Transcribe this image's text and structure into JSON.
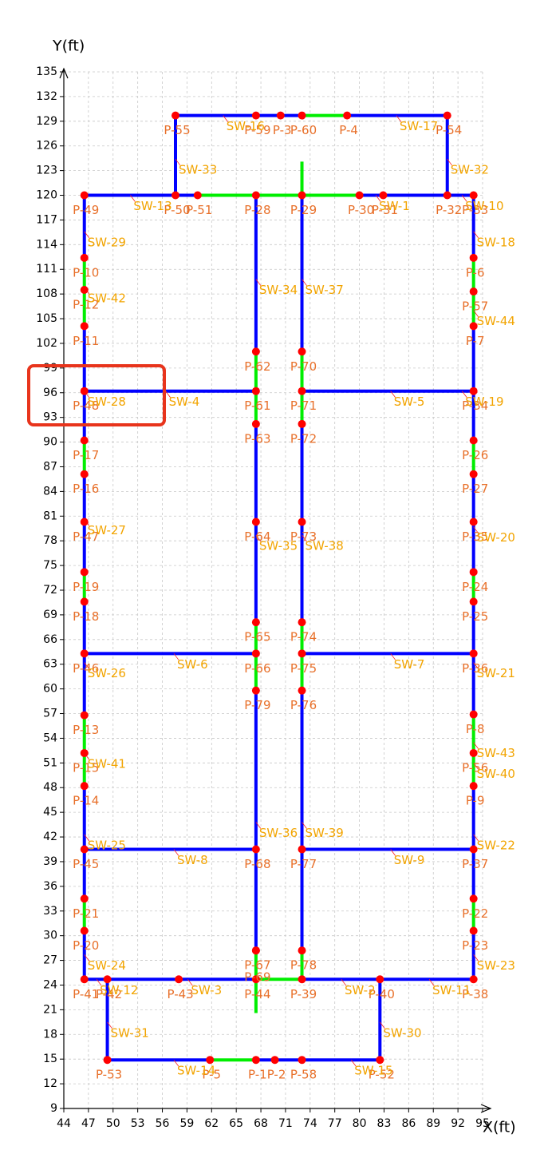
{
  "chart_data": {
    "type": "network",
    "x_label": "X(ft)",
    "y_label": "Y(ft)",
    "xlim": [
      44,
      95
    ],
    "ylim": [
      9,
      135
    ],
    "xticks": [
      44,
      47,
      50,
      53,
      56,
      59,
      62,
      65,
      68,
      71,
      74,
      77,
      80,
      83,
      86,
      89,
      92,
      95
    ],
    "yticks": [
      9,
      12,
      15,
      18,
      21,
      24,
      27,
      30,
      33,
      36,
      39,
      42,
      45,
      48,
      51,
      54,
      57,
      60,
      63,
      66,
      69,
      72,
      75,
      78,
      81,
      84,
      87,
      90,
      93,
      96,
      99,
      102,
      105,
      108,
      111,
      114,
      117,
      120,
      123,
      126,
      129,
      132,
      135
    ],
    "grid": true,
    "node_color": "#ff0000",
    "node_label_color": "#e8702a",
    "sw_label_color": "#f2a400",
    "pipes": [
      {
        "x": [
          57.6,
          57.6
        ],
        "y": [
          120,
          129.7
        ],
        "color": "#0000ff"
      },
      {
        "x": [
          57.6,
          73.0
        ],
        "y": [
          129.7,
          129.7
        ],
        "color": "#0000ff"
      },
      {
        "x": [
          73.0,
          78.5
        ],
        "y": [
          129.7,
          129.7
        ],
        "color": "#00ee00"
      },
      {
        "x": [
          78.5,
          90.7
        ],
        "y": [
          129.7,
          129.7
        ],
        "color": "#0000ff"
      },
      {
        "x": [
          90.7,
          90.7
        ],
        "y": [
          129.7,
          120
        ],
        "color": "#0000ff"
      },
      {
        "x": [
          46.5,
          60.3
        ],
        "y": [
          120,
          120
        ],
        "color": "#0000ff"
      },
      {
        "x": [
          60.3,
          80.0
        ],
        "y": [
          120,
          120
        ],
        "color": "#00ee00"
      },
      {
        "x": [
          80.0,
          93.9
        ],
        "y": [
          120,
          120
        ],
        "color": "#0000ff"
      },
      {
        "x": [
          67.4,
          67.4
        ],
        "y": [
          120,
          101.0
        ],
        "color": "#0000ff"
      },
      {
        "x": [
          67.4,
          67.4
        ],
        "y": [
          101.0,
          92.2
        ],
        "color": "#00ee00"
      },
      {
        "x": [
          67.4,
          67.4
        ],
        "y": [
          92.2,
          68.1
        ],
        "color": "#0000ff"
      },
      {
        "x": [
          67.4,
          67.4
        ],
        "y": [
          68.1,
          59.8
        ],
        "color": "#00ee00"
      },
      {
        "x": [
          67.4,
          67.4
        ],
        "y": [
          59.8,
          28.2
        ],
        "color": "#0000ff"
      },
      {
        "x": [
          67.4,
          67.4
        ],
        "y": [
          28.2,
          20.8
        ],
        "color": "#00ee00"
      },
      {
        "x": [
          73.0,
          73.0
        ],
        "y": [
          123.9,
          120
        ],
        "color": "#00ee00"
      },
      {
        "x": [
          73.0,
          73.0
        ],
        "y": [
          120,
          101.0
        ],
        "color": "#0000ff"
      },
      {
        "x": [
          73.0,
          73.0
        ],
        "y": [
          101.0,
          92.2
        ],
        "color": "#00ee00"
      },
      {
        "x": [
          73.0,
          73.0
        ],
        "y": [
          92.2,
          68.1
        ],
        "color": "#0000ff"
      },
      {
        "x": [
          73.0,
          73.0
        ],
        "y": [
          68.1,
          59.8
        ],
        "color": "#00ee00"
      },
      {
        "x": [
          73.0,
          73.0
        ],
        "y": [
          59.8,
          28.2
        ],
        "color": "#0000ff"
      },
      {
        "x": [
          73.0,
          73.0
        ],
        "y": [
          28.2,
          24.7
        ],
        "color": "#00ee00"
      },
      {
        "x": [
          46.5,
          67.4
        ],
        "y": [
          96.2,
          96.2
        ],
        "color": "#0000ff"
      },
      {
        "x": [
          73.0,
          93.9
        ],
        "y": [
          96.2,
          96.2
        ],
        "color": "#0000ff"
      },
      {
        "x": [
          46.5,
          67.4
        ],
        "y": [
          64.3,
          64.3
        ],
        "color": "#0000ff"
      },
      {
        "x": [
          73.0,
          93.9
        ],
        "y": [
          64.3,
          64.3
        ],
        "color": "#0000ff"
      },
      {
        "x": [
          46.5,
          67.4
        ],
        "y": [
          40.5,
          40.5
        ],
        "color": "#0000ff"
      },
      {
        "x": [
          73.0,
          93.9
        ],
        "y": [
          40.5,
          40.5
        ],
        "color": "#0000ff"
      },
      {
        "x": [
          46.5,
          67.4
        ],
        "y": [
          24.7,
          24.7
        ],
        "color": "#0000ff"
      },
      {
        "x": [
          67.4,
          73.0
        ],
        "y": [
          24.7,
          24.7
        ],
        "color": "#00ee00"
      },
      {
        "x": [
          73.0,
          93.9
        ],
        "y": [
          24.7,
          24.7
        ],
        "color": "#0000ff"
      },
      {
        "x": [
          46.5,
          46.5
        ],
        "y": [
          120,
          112.4
        ],
        "color": "#0000ff"
      },
      {
        "x": [
          46.5,
          46.5
        ],
        "y": [
          112.4,
          104.1
        ],
        "color": "#00ee00"
      },
      {
        "x": [
          46.5,
          46.5
        ],
        "y": [
          104.1,
          90.2
        ],
        "color": "#0000ff"
      },
      {
        "x": [
          46.5,
          46.5
        ],
        "y": [
          90.2,
          86.1
        ],
        "color": "#00ee00"
      },
      {
        "x": [
          46.5,
          46.5
        ],
        "y": [
          86.1,
          74.2
        ],
        "color": "#0000ff"
      },
      {
        "x": [
          46.5,
          46.5
        ],
        "y": [
          74.2,
          70.6
        ],
        "color": "#00ee00"
      },
      {
        "x": [
          46.5,
          46.5
        ],
        "y": [
          70.6,
          56.8
        ],
        "color": "#0000ff"
      },
      {
        "x": [
          46.5,
          46.5
        ],
        "y": [
          56.8,
          48.2
        ],
        "color": "#00ee00"
      },
      {
        "x": [
          46.5,
          46.5
        ],
        "y": [
          48.2,
          34.5
        ],
        "color": "#0000ff"
      },
      {
        "x": [
          46.5,
          46.5
        ],
        "y": [
          34.5,
          30.6
        ],
        "color": "#00ee00"
      },
      {
        "x": [
          46.5,
          46.5
        ],
        "y": [
          30.6,
          24.7
        ],
        "color": "#0000ff"
      },
      {
        "x": [
          93.9,
          93.9
        ],
        "y": [
          120,
          112.4
        ],
        "color": "#0000ff"
      },
      {
        "x": [
          93.9,
          93.9
        ],
        "y": [
          112.4,
          104.1
        ],
        "color": "#00ee00"
      },
      {
        "x": [
          93.9,
          93.9
        ],
        "y": [
          104.1,
          90.2
        ],
        "color": "#0000ff"
      },
      {
        "x": [
          93.9,
          93.9
        ],
        "y": [
          90.2,
          86.1
        ],
        "color": "#00ee00"
      },
      {
        "x": [
          93.9,
          93.9
        ],
        "y": [
          86.1,
          74.2
        ],
        "color": "#0000ff"
      },
      {
        "x": [
          93.9,
          93.9
        ],
        "y": [
          74.2,
          70.6
        ],
        "color": "#00ee00"
      },
      {
        "x": [
          93.9,
          93.9
        ],
        "y": [
          70.6,
          56.9
        ],
        "color": "#0000ff"
      },
      {
        "x": [
          93.9,
          93.9
        ],
        "y": [
          56.9,
          48.2
        ],
        "color": "#00ee00"
      },
      {
        "x": [
          93.9,
          93.9
        ],
        "y": [
          48.2,
          34.5
        ],
        "color": "#0000ff"
      },
      {
        "x": [
          93.9,
          93.9
        ],
        "y": [
          34.5,
          30.6
        ],
        "color": "#00ee00"
      },
      {
        "x": [
          93.9,
          93.9
        ],
        "y": [
          30.6,
          24.7
        ],
        "color": "#0000ff"
      },
      {
        "x": [
          49.3,
          49.3
        ],
        "y": [
          24.7,
          14.9
        ],
        "color": "#0000ff"
      },
      {
        "x": [
          49.3,
          61.8
        ],
        "y": [
          14.9,
          14.9
        ],
        "color": "#0000ff"
      },
      {
        "x": [
          61.8,
          67.4
        ],
        "y": [
          14.9,
          14.9
        ],
        "color": "#00ee00"
      },
      {
        "x": [
          67.4,
          82.5
        ],
        "y": [
          14.9,
          14.9
        ],
        "color": "#0000ff"
      },
      {
        "x": [
          82.5,
          82.5
        ],
        "y": [
          24.7,
          14.9
        ],
        "color": "#0000ff"
      }
    ],
    "nodes": [
      {
        "label": "P-55",
        "x": 57.6,
        "y": 129.7
      },
      {
        "label": "P-59",
        "x": 67.4,
        "y": 129.7
      },
      {
        "label": "P-3",
        "x": 70.4,
        "y": 129.7
      },
      {
        "label": "P-60",
        "x": 73.0,
        "y": 129.7
      },
      {
        "label": "P-4",
        "x": 78.5,
        "y": 129.7
      },
      {
        "label": "P-54",
        "x": 90.7,
        "y": 129.7
      },
      {
        "label": "P-49",
        "x": 46.5,
        "y": 120
      },
      {
        "label": "P-50",
        "x": 57.6,
        "y": 120
      },
      {
        "label": "P-51",
        "x": 60.3,
        "y": 120
      },
      {
        "label": "P-28",
        "x": 67.4,
        "y": 120
      },
      {
        "label": "P-29",
        "x": 73.0,
        "y": 120
      },
      {
        "label": "P-30",
        "x": 80.0,
        "y": 120
      },
      {
        "label": "P-31",
        "x": 82.9,
        "y": 120
      },
      {
        "label": "P-32",
        "x": 90.7,
        "y": 120
      },
      {
        "label": "P-33",
        "x": 93.9,
        "y": 120
      },
      {
        "label": "P-10",
        "x": 46.5,
        "y": 112.4
      },
      {
        "label": "P-12",
        "x": 46.5,
        "y": 108.5
      },
      {
        "label": "P-11",
        "x": 46.5,
        "y": 104.1
      },
      {
        "label": "P-48",
        "x": 46.5,
        "y": 96.2
      },
      {
        "label": "P-17",
        "x": 46.5,
        "y": 90.2
      },
      {
        "label": "P-16",
        "x": 46.5,
        "y": 86.1
      },
      {
        "label": "P-47",
        "x": 46.5,
        "y": 80.3
      },
      {
        "label": "P-19",
        "x": 46.5,
        "y": 74.2
      },
      {
        "label": "P-18",
        "x": 46.5,
        "y": 70.6
      },
      {
        "label": "P-46",
        "x": 46.5,
        "y": 64.3
      },
      {
        "label": "P-13",
        "x": 46.5,
        "y": 56.8
      },
      {
        "label": "P-15",
        "x": 46.5,
        "y": 52.2
      },
      {
        "label": "P-14",
        "x": 46.5,
        "y": 48.2
      },
      {
        "label": "P-45",
        "x": 46.5,
        "y": 40.5
      },
      {
        "label": "P-21",
        "x": 46.5,
        "y": 34.5
      },
      {
        "label": "P-20",
        "x": 46.5,
        "y": 30.6
      },
      {
        "label": "P-41",
        "x": 46.5,
        "y": 24.7
      },
      {
        "label": "P-6",
        "x": 93.9,
        "y": 112.4
      },
      {
        "label": "P-57",
        "x": 93.9,
        "y": 108.3
      },
      {
        "label": "P-7",
        "x": 93.9,
        "y": 104.1
      },
      {
        "label": "P-34",
        "x": 93.9,
        "y": 96.2
      },
      {
        "label": "P-26",
        "x": 93.9,
        "y": 90.2
      },
      {
        "label": "P-27",
        "x": 93.9,
        "y": 86.1
      },
      {
        "label": "P-35",
        "x": 93.9,
        "y": 80.3
      },
      {
        "label": "P-24",
        "x": 93.9,
        "y": 74.2
      },
      {
        "label": "P-25",
        "x": 93.9,
        "y": 70.6
      },
      {
        "label": "P-36",
        "x": 93.9,
        "y": 64.3
      },
      {
        "label": "P-8",
        "x": 93.9,
        "y": 56.9
      },
      {
        "label": "P-56",
        "x": 93.9,
        "y": 52.2
      },
      {
        "label": "P-9",
        "x": 93.9,
        "y": 48.2
      },
      {
        "label": "P-37",
        "x": 93.9,
        "y": 40.5
      },
      {
        "label": "P-22",
        "x": 93.9,
        "y": 34.5
      },
      {
        "label": "P-23",
        "x": 93.9,
        "y": 30.6
      },
      {
        "label": "P-38",
        "x": 93.9,
        "y": 24.7
      },
      {
        "label": "P-62",
        "x": 67.4,
        "y": 101.0
      },
      {
        "label": "P-61",
        "x": 67.4,
        "y": 96.2
      },
      {
        "label": "P-63",
        "x": 67.4,
        "y": 92.2
      },
      {
        "label": "P-64",
        "x": 67.4,
        "y": 80.3
      },
      {
        "label": "P-65",
        "x": 67.4,
        "y": 68.1
      },
      {
        "label": "P-66",
        "x": 67.4,
        "y": 64.3
      },
      {
        "label": "P-79",
        "x": 67.4,
        "y": 59.8
      },
      {
        "label": "P-68",
        "x": 67.4,
        "y": 40.5
      },
      {
        "label": "P-67",
        "x": 67.4,
        "y": 28.2
      },
      {
        "label": "P-69",
        "x": 67.4,
        "y": 28.2
      },
      {
        "label": "P-44",
        "x": 67.4,
        "y": 24.7
      },
      {
        "label": "P-1",
        "x": 67.4,
        "y": 14.9
      },
      {
        "label": "P-70",
        "x": 73.0,
        "y": 101.0
      },
      {
        "label": "P-71",
        "x": 73.0,
        "y": 96.2
      },
      {
        "label": "P-72",
        "x": 73.0,
        "y": 92.2
      },
      {
        "label": "P-73",
        "x": 73.0,
        "y": 80.3
      },
      {
        "label": "P-74",
        "x": 73.0,
        "y": 68.1
      },
      {
        "label": "P-75",
        "x": 73.0,
        "y": 64.3
      },
      {
        "label": "P-76",
        "x": 73.0,
        "y": 59.8
      },
      {
        "label": "P-77",
        "x": 73.0,
        "y": 40.5
      },
      {
        "label": "P-78",
        "x": 73.0,
        "y": 28.2
      },
      {
        "label": "P-39",
        "x": 73.0,
        "y": 24.7
      },
      {
        "label": "P-58",
        "x": 73.0,
        "y": 14.9
      },
      {
        "label": "P-42",
        "x": 49.3,
        "y": 24.7
      },
      {
        "label": "P-43",
        "x": 58.0,
        "y": 24.7
      },
      {
        "label": "P-40",
        "x": 82.5,
        "y": 24.7
      },
      {
        "label": "P-53",
        "x": 49.3,
        "y": 14.9
      },
      {
        "label": "P-5",
        "x": 61.8,
        "y": 14.9
      },
      {
        "label": "P-2",
        "x": 69.7,
        "y": 14.9
      },
      {
        "label": "P-52",
        "x": 82.5,
        "y": 14.9
      }
    ],
    "sw_labels": [
      {
        "text": "SW-16",
        "x": 63.4,
        "y": 129.7
      },
      {
        "text": "SW-17",
        "x": 84.5,
        "y": 129.7
      },
      {
        "text": "SW-33",
        "x": 57.6,
        "y": 124.4
      },
      {
        "text": "SW-32",
        "x": 90.7,
        "y": 124.4
      },
      {
        "text": "SW-13",
        "x": 52.1,
        "y": 120
      },
      {
        "text": "SW-1",
        "x": 82.0,
        "y": 120
      },
      {
        "text": "SW-10",
        "x": 92.5,
        "y": 120
      },
      {
        "text": "SW-29",
        "x": 46.5,
        "y": 115.6
      },
      {
        "text": "SW-18",
        "x": 93.9,
        "y": 115.6
      },
      {
        "text": "SW-34",
        "x": 67.4,
        "y": 109.8
      },
      {
        "text": "SW-37",
        "x": 73.0,
        "y": 109.8
      },
      {
        "text": "SW-42",
        "x": 46.5,
        "y": 108.8
      },
      {
        "text": "SW-44",
        "x": 93.9,
        "y": 106.0
      },
      {
        "text": "SW-28",
        "x": 46.5,
        "y": 96.2
      },
      {
        "text": "SW-4",
        "x": 56.4,
        "y": 96.2
      },
      {
        "text": "SW-5",
        "x": 83.8,
        "y": 96.2
      },
      {
        "text": "SW-19",
        "x": 92.5,
        "y": 96.2
      },
      {
        "text": "SW-27",
        "x": 46.5,
        "y": 80.6
      },
      {
        "text": "SW-35",
        "x": 67.4,
        "y": 78.7
      },
      {
        "text": "SW-38",
        "x": 73.0,
        "y": 78.7
      },
      {
        "text": "SW-20",
        "x": 93.9,
        "y": 79.7
      },
      {
        "text": "SW-6",
        "x": 57.4,
        "y": 64.3
      },
      {
        "text": "SW-7",
        "x": 83.8,
        "y": 64.3
      },
      {
        "text": "SW-26",
        "x": 46.5,
        "y": 63.2
      },
      {
        "text": "SW-21",
        "x": 93.9,
        "y": 63.2
      },
      {
        "text": "SW-41",
        "x": 46.5,
        "y": 52.2
      },
      {
        "text": "SW-43",
        "x": 93.9,
        "y": 53.5
      },
      {
        "text": "SW-40",
        "x": 93.9,
        "y": 51.0
      },
      {
        "text": "SW-25",
        "x": 46.5,
        "y": 42.3
      },
      {
        "text": "SW-22",
        "x": 93.9,
        "y": 42.3
      },
      {
        "text": "SW-36",
        "x": 67.4,
        "y": 43.8
      },
      {
        "text": "SW-39",
        "x": 73.0,
        "y": 43.8
      },
      {
        "text": "SW-8",
        "x": 57.4,
        "y": 40.5
      },
      {
        "text": "SW-9",
        "x": 83.8,
        "y": 40.5
      },
      {
        "text": "SW-24",
        "x": 46.5,
        "y": 27.7
      },
      {
        "text": "SW-23",
        "x": 93.9,
        "y": 27.7
      },
      {
        "text": "SW-3",
        "x": 59.1,
        "y": 24.7
      },
      {
        "text": "SW-2",
        "x": 77.8,
        "y": 24.7
      },
      {
        "text": "SW-11",
        "x": 88.5,
        "y": 24.7
      },
      {
        "text": "SW-12",
        "x": 48.0,
        "y": 24.7
      },
      {
        "text": "SW-31",
        "x": 49.3,
        "y": 19.5
      },
      {
        "text": "SW-30",
        "x": 82.5,
        "y": 19.5
      },
      {
        "text": "SW-14",
        "x": 57.4,
        "y": 14.9
      },
      {
        "text": "SW-15",
        "x": 79.0,
        "y": 14.9
      }
    ]
  }
}
